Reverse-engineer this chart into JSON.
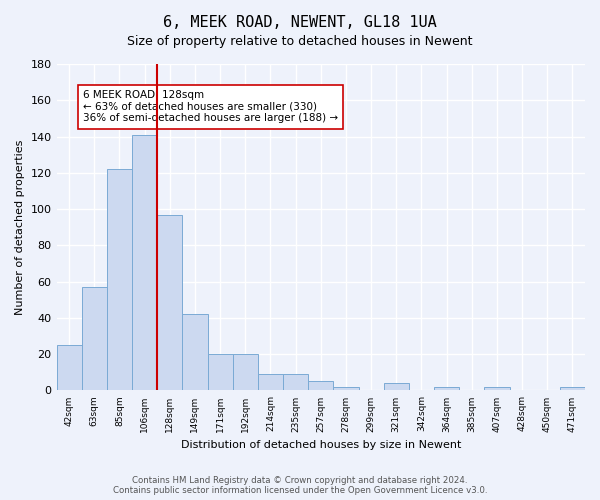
{
  "title": "6, MEEK ROAD, NEWENT, GL18 1UA",
  "subtitle": "Size of property relative to detached houses in Newent",
  "xlabel": "Distribution of detached houses by size in Newent",
  "ylabel": "Number of detached properties",
  "bar_labels": [
    "42sqm",
    "63sqm",
    "85sqm",
    "106sqm",
    "128sqm",
    "149sqm",
    "171sqm",
    "192sqm",
    "214sqm",
    "235sqm",
    "257sqm",
    "278sqm",
    "299sqm",
    "321sqm",
    "342sqm",
    "364sqm",
    "385sqm",
    "407sqm",
    "428sqm",
    "450sqm",
    "471sqm"
  ],
  "bar_values": [
    25,
    57,
    122,
    141,
    97,
    42,
    20,
    20,
    9,
    9,
    5,
    2,
    0,
    4,
    0,
    2,
    0,
    2,
    0,
    0,
    2
  ],
  "bar_color": "#ccd9f0",
  "bar_edge_color": "#7aaad4",
  "vline_idx": 4,
  "vline_color": "#cc0000",
  "annotation_text": "6 MEEK ROAD: 128sqm\n← 63% of detached houses are smaller (330)\n36% of semi-detached houses are larger (188) →",
  "annotation_box_color": "#ffffff",
  "annotation_box_edge": "#cc0000",
  "ylim": [
    0,
    180
  ],
  "yticks": [
    0,
    20,
    40,
    60,
    80,
    100,
    120,
    140,
    160,
    180
  ],
  "footer_text": "Contains HM Land Registry data © Crown copyright and database right 2024.\nContains public sector information licensed under the Open Government Licence v3.0.",
  "bg_color": "#eef2fb",
  "grid_color": "#ffffff",
  "title_fontsize": 11,
  "subtitle_fontsize": 9
}
